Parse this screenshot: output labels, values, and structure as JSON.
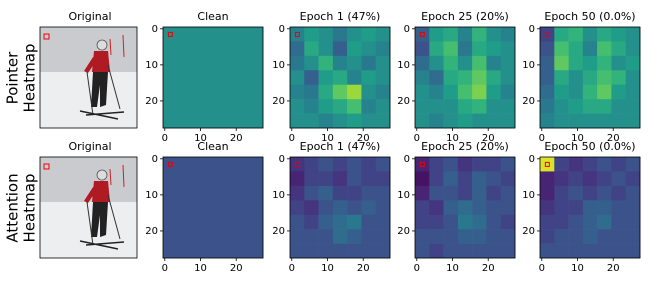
{
  "row_labels": [
    [
      "Pointer",
      "Heatmap"
    ],
    [
      "Attention",
      "Heatmap"
    ]
  ],
  "chart_data": [
    {
      "type": "image",
      "title": "Original"
    },
    {
      "type": "heatmap",
      "title": "Clean",
      "colormap": "viridis",
      "vmin": 0,
      "vmax": 1,
      "xlim": [
        -0.5,
        27.5
      ],
      "ylim": [
        27.5,
        -0.5
      ],
      "xticks": [
        0,
        10,
        20
      ],
      "yticks": [
        0,
        10,
        20
      ],
      "z": [
        [
          0.5
        ]
      ]
    },
    {
      "type": "heatmap",
      "title": "Epoch 1 (47%)",
      "colormap": "viridis",
      "vmin": 0,
      "vmax": 1,
      "xlim": [
        -0.5,
        27.5
      ],
      "ylim": [
        27.5,
        -0.5
      ],
      "xticks": [
        0,
        10,
        20
      ],
      "yticks": [
        0,
        10,
        20
      ],
      "z": [
        [
          0.45,
          0.55,
          0.5,
          0.4,
          0.5,
          0.55,
          0.5
        ],
        [
          0.35,
          0.6,
          0.5,
          0.3,
          0.55,
          0.5,
          0.45
        ],
        [
          0.4,
          0.5,
          0.65,
          0.45,
          0.5,
          0.4,
          0.5
        ],
        [
          0.5,
          0.3,
          0.55,
          0.6,
          0.45,
          0.55,
          0.5
        ],
        [
          0.45,
          0.4,
          0.6,
          0.75,
          0.85,
          0.5,
          0.45
        ],
        [
          0.5,
          0.45,
          0.55,
          0.6,
          0.7,
          0.45,
          0.5
        ],
        [
          0.5,
          0.5,
          0.45,
          0.5,
          0.55,
          0.5,
          0.5
        ]
      ]
    },
    {
      "type": "heatmap",
      "title": "Epoch 25 (20%)",
      "colormap": "viridis",
      "vmin": 0,
      "vmax": 1,
      "xlim": [
        -0.5,
        27.5
      ],
      "ylim": [
        27.5,
        -0.5
      ],
      "xticks": [
        0,
        10,
        20
      ],
      "yticks": [
        0,
        10,
        20
      ],
      "z": [
        [
          0.3,
          0.55,
          0.6,
          0.45,
          0.65,
          0.5,
          0.45
        ],
        [
          0.25,
          0.6,
          0.7,
          0.4,
          0.6,
          0.55,
          0.5
        ],
        [
          0.35,
          0.5,
          0.65,
          0.5,
          0.7,
          0.45,
          0.5
        ],
        [
          0.45,
          0.35,
          0.6,
          0.65,
          0.75,
          0.6,
          0.5
        ],
        [
          0.5,
          0.45,
          0.55,
          0.7,
          0.8,
          0.55,
          0.45
        ],
        [
          0.5,
          0.5,
          0.5,
          0.6,
          0.65,
          0.5,
          0.5
        ],
        [
          0.5,
          0.45,
          0.5,
          0.55,
          0.5,
          0.5,
          0.5
        ]
      ]
    },
    {
      "type": "heatmap",
      "title": "Epoch 50 (0.0%)",
      "colormap": "viridis",
      "vmin": 0,
      "vmax": 1,
      "xlim": [
        -0.5,
        27.5
      ],
      "ylim": [
        27.5,
        -0.5
      ],
      "xticks": [
        0,
        10,
        20
      ],
      "yticks": [
        0,
        10,
        20
      ],
      "z": [
        [
          0.2,
          0.6,
          0.65,
          0.5,
          0.6,
          0.55,
          0.5
        ],
        [
          0.25,
          0.7,
          0.6,
          0.45,
          0.7,
          0.6,
          0.5
        ],
        [
          0.3,
          0.75,
          0.6,
          0.55,
          0.65,
          0.5,
          0.55
        ],
        [
          0.3,
          0.6,
          0.5,
          0.6,
          0.7,
          0.65,
          0.5
        ],
        [
          0.35,
          0.55,
          0.5,
          0.65,
          0.75,
          0.55,
          0.5
        ],
        [
          0.4,
          0.5,
          0.55,
          0.6,
          0.6,
          0.5,
          0.5
        ],
        [
          0.45,
          0.5,
          0.5,
          0.5,
          0.5,
          0.5,
          0.5
        ]
      ]
    },
    {
      "type": "image",
      "title": "Original"
    },
    {
      "type": "heatmap",
      "title": "Clean",
      "colormap": "viridis",
      "vmin": 0,
      "vmax": 1,
      "xlim": [
        -0.5,
        27.5
      ],
      "ylim": [
        27.5,
        -0.5
      ],
      "xticks": [
        0,
        10,
        20
      ],
      "yticks": [
        0,
        10,
        20
      ],
      "z": [
        [
          0.25
        ]
      ]
    },
    {
      "type": "heatmap",
      "title": "Epoch 1 (47%)",
      "colormap": "viridis",
      "vmin": 0,
      "vmax": 1,
      "xlim": [
        -0.5,
        27.5
      ],
      "ylim": [
        27.5,
        -0.5
      ],
      "xticks": [
        0,
        10,
        20
      ],
      "yticks": [
        0,
        10,
        20
      ],
      "z": [
        [
          0.15,
          0.2,
          0.25,
          0.2,
          0.25,
          0.2,
          0.25
        ],
        [
          0.1,
          0.2,
          0.2,
          0.15,
          0.25,
          0.2,
          0.2
        ],
        [
          0.15,
          0.25,
          0.3,
          0.2,
          0.2,
          0.25,
          0.25
        ],
        [
          0.2,
          0.15,
          0.25,
          0.3,
          0.25,
          0.3,
          0.25
        ],
        [
          0.25,
          0.2,
          0.3,
          0.35,
          0.4,
          0.25,
          0.25
        ],
        [
          0.25,
          0.25,
          0.25,
          0.35,
          0.3,
          0.25,
          0.25
        ],
        [
          0.25,
          0.25,
          0.25,
          0.25,
          0.25,
          0.25,
          0.25
        ]
      ]
    },
    {
      "type": "heatmap",
      "title": "Epoch 25 (20%)",
      "colormap": "viridis",
      "vmin": 0,
      "vmax": 1,
      "xlim": [
        -0.5,
        27.5
      ],
      "ylim": [
        27.5,
        -0.5
      ],
      "xticks": [
        0,
        10,
        20
      ],
      "yticks": [
        0,
        10,
        20
      ],
      "z": [
        [
          0.1,
          0.2,
          0.25,
          0.15,
          0.2,
          0.2,
          0.25
        ],
        [
          0.05,
          0.2,
          0.3,
          0.2,
          0.3,
          0.25,
          0.2
        ],
        [
          0.1,
          0.25,
          0.25,
          0.2,
          0.3,
          0.2,
          0.25
        ],
        [
          0.2,
          0.15,
          0.3,
          0.35,
          0.3,
          0.25,
          0.25
        ],
        [
          0.2,
          0.2,
          0.25,
          0.4,
          0.35,
          0.25,
          0.2
        ],
        [
          0.25,
          0.25,
          0.25,
          0.3,
          0.3,
          0.25,
          0.25
        ],
        [
          0.25,
          0.2,
          0.25,
          0.25,
          0.25,
          0.25,
          0.25
        ]
      ]
    },
    {
      "type": "heatmap",
      "title": "Epoch 50 (0.0%)",
      "colormap": "viridis",
      "vmin": 0,
      "vmax": 1,
      "xlim": [
        -0.5,
        27.5
      ],
      "ylim": [
        27.5,
        -0.5
      ],
      "xticks": [
        0,
        10,
        20
      ],
      "yticks": [
        0,
        10,
        20
      ],
      "z": [
        [
          0.95,
          0.2,
          0.15,
          0.2,
          0.25,
          0.2,
          0.25
        ],
        [
          0.1,
          0.15,
          0.2,
          0.15,
          0.2,
          0.25,
          0.2
        ],
        [
          0.1,
          0.2,
          0.25,
          0.2,
          0.25,
          0.2,
          0.25
        ],
        [
          0.15,
          0.2,
          0.2,
          0.3,
          0.3,
          0.25,
          0.25
        ],
        [
          0.2,
          0.2,
          0.25,
          0.3,
          0.35,
          0.25,
          0.25
        ],
        [
          0.2,
          0.25,
          0.25,
          0.3,
          0.25,
          0.25,
          0.25
        ],
        [
          0.25,
          0.25,
          0.25,
          0.25,
          0.25,
          0.25,
          0.25
        ]
      ]
    }
  ]
}
